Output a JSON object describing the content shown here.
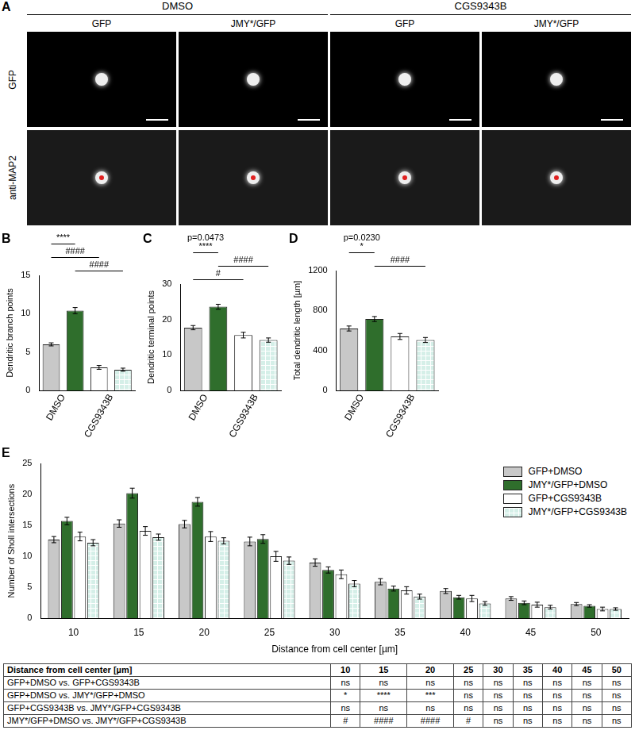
{
  "panel_a": {
    "letter": "A",
    "groups": [
      {
        "title": "DMSO",
        "columns": [
          "GFP",
          "JMY*/GFP"
        ]
      },
      {
        "title": "CGS9343B",
        "columns": [
          "GFP",
          "JMY*/GFP"
        ]
      }
    ],
    "rows": [
      "GFP",
      "anti-MAP2"
    ]
  },
  "chart_data": [
    {
      "letter": "B",
      "type": "bar",
      "categories": [
        "DMSO",
        null,
        "CGS9343B",
        null
      ],
      "values": [
        6.0,
        10.4,
        3.0,
        2.7
      ],
      "errors": [
        0.2,
        0.4,
        0.25,
        0.2
      ],
      "colors": [
        "#c8c8c8",
        "#2f6e2c",
        "#ffffff",
        "#d5efe8"
      ],
      "y_label": "Dendritic branch points",
      "ylim": [
        0,
        15
      ],
      "yticks": [
        0,
        5,
        10,
        15
      ],
      "grid": false,
      "annotations": [
        {
          "from": 0,
          "to": 1,
          "text": [
            "****"
          ]
        },
        {
          "from": 0,
          "to": 2,
          "text": [
            "####"
          ]
        },
        {
          "from": 1,
          "to": 3,
          "text": [
            "####"
          ]
        }
      ]
    },
    {
      "letter": "C",
      "type": "bar",
      "categories": [
        "DMSO",
        null,
        "CGS9343B",
        null
      ],
      "values": [
        17.7,
        23.6,
        15.6,
        14.2
      ],
      "errors": [
        0.6,
        0.7,
        0.8,
        0.6
      ],
      "colors": [
        "#c8c8c8",
        "#2f6e2c",
        "#ffffff",
        "#d5efe8"
      ],
      "y_label": "Dendritic terminal points",
      "ylim": [
        0,
        30
      ],
      "yticks": [
        0,
        10,
        20,
        30
      ],
      "grid": false,
      "annotations": [
        {
          "from": 0,
          "to": 1,
          "text": [
            "p=0.0473",
            "****"
          ]
        },
        {
          "from": 1,
          "to": 3,
          "text": [
            "####"
          ]
        },
        {
          "from": 0,
          "to": 2,
          "text": [
            "#"
          ]
        }
      ]
    },
    {
      "letter": "D",
      "type": "bar",
      "categories": [
        "DMSO",
        null,
        "CGS9343B",
        null
      ],
      "values": [
        620,
        715,
        540,
        505
      ],
      "errors": [
        25,
        25,
        30,
        25
      ],
      "colors": [
        "#c8c8c8",
        "#2f6e2c",
        "#ffffff",
        "#d5efe8"
      ],
      "y_label": "Total dendritic length [µm]",
      "ylim": [
        0,
        1200
      ],
      "yticks": [
        0,
        400,
        800,
        1200
      ],
      "grid": false,
      "annotations": [
        {
          "from": 0,
          "to": 1,
          "text": [
            "p=0.0230",
            "*"
          ]
        },
        {
          "from": 1,
          "to": 3,
          "text": [
            "####"
          ]
        }
      ]
    },
    {
      "letter": "E",
      "type": "bar",
      "categories": [
        10,
        15,
        20,
        25,
        30,
        35,
        40,
        45,
        50
      ],
      "series": [
        {
          "name": "GFP+DMSO",
          "color": "#c8c8c8",
          "values": [
            12.7,
            15.3,
            15.2,
            12.4,
            9.0,
            5.9,
            4.4,
            3.2,
            2.3
          ],
          "errors": [
            0.5,
            0.6,
            0.6,
            0.7,
            0.6,
            0.5,
            0.4,
            0.3,
            0.25
          ]
        },
        {
          "name": "JMY*/GFP+DMSO",
          "color": "#2f6e2c",
          "values": [
            15.7,
            20.2,
            18.8,
            12.8,
            7.8,
            4.8,
            3.4,
            2.5,
            2.0
          ],
          "errors": [
            0.6,
            0.8,
            0.7,
            0.7,
            0.5,
            0.4,
            0.3,
            0.3,
            0.2
          ]
        },
        {
          "name": "GFP+CGS9343B",
          "color": "#ffffff",
          "values": [
            13.2,
            14.1,
            13.2,
            10.0,
            7.1,
            4.5,
            3.2,
            2.2,
            1.5
          ],
          "errors": [
            0.7,
            0.7,
            0.8,
            0.8,
            0.7,
            0.6,
            0.5,
            0.4,
            0.3
          ]
        },
        {
          "name": "JMY*/GFP+CGS9343B",
          "color": "#d5efe8",
          "values": [
            12.2,
            13.1,
            12.5,
            9.3,
            5.6,
            3.5,
            2.4,
            1.8,
            1.5
          ],
          "errors": [
            0.5,
            0.5,
            0.5,
            0.6,
            0.5,
            0.4,
            0.3,
            0.3,
            0.2
          ]
        }
      ],
      "x_label": "Distance from cell center [µm]",
      "y_label": "Number of Sholl intersections",
      "ylim": [
        0,
        25
      ],
      "yticks": [
        0,
        5,
        10,
        15,
        20,
        25
      ],
      "legend": "top-right",
      "grid": false
    }
  ],
  "table": {
    "header": [
      "Distance from cell center [µm]",
      10,
      15,
      20,
      25,
      30,
      35,
      40,
      45,
      50
    ],
    "rows": [
      [
        "GFP+DMSO vs. GFP+CGS9343B",
        "ns",
        "ns",
        "ns",
        "ns",
        "ns",
        "ns",
        "ns",
        "ns",
        "ns"
      ],
      [
        "GFP+DMSO vs. JMY*/GFP+DMSO",
        "*",
        "****",
        "***",
        "ns",
        "ns",
        "ns",
        "ns",
        "ns",
        "ns"
      ],
      [
        "GFP+CGS9343B vs. JMY*/GFP+CGS9343B",
        "ns",
        "ns",
        "ns",
        "ns",
        "ns",
        "ns",
        "ns",
        "ns",
        "ns"
      ],
      [
        "JMY*/GFP+DMSO vs. JMY*/GFP+CGS9343B",
        "#",
        "####",
        "####",
        "#",
        "ns",
        "ns",
        "ns",
        "ns",
        "ns"
      ]
    ]
  }
}
